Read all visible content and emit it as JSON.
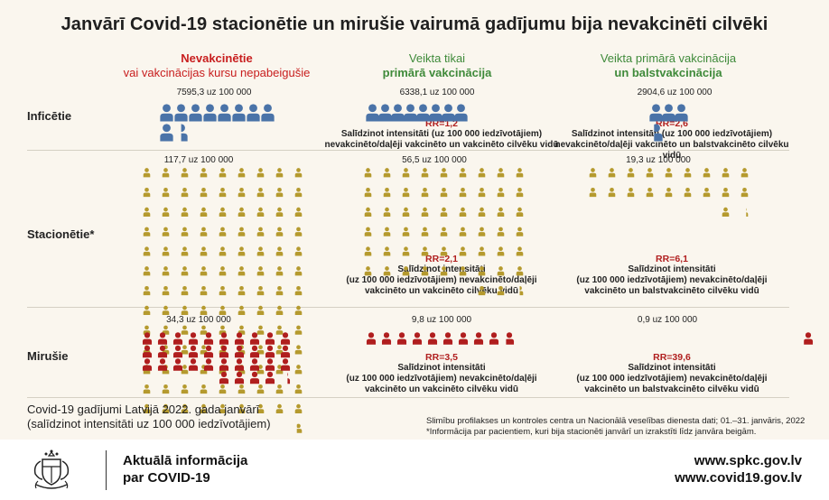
{
  "title": "Janvārī Covid-19 stacionētie un mirušie vairumā gadījumu bija nevakcinēti cilvēki",
  "columns": [
    {
      "line1": "Nevakcinētie",
      "line2": "vai vakcinācijas kursu nepabeigušie",
      "color1": "#c81e1e",
      "color2": "#c81e1e"
    },
    {
      "line1": "Veikta tikai",
      "line2": "primārā vakcinācija",
      "color1": "#3f8a3a",
      "color2": "#3f8a3a"
    },
    {
      "line1": "Veikta primārā vakcinācija",
      "line2": "un balstvakcinācija",
      "color1": "#3f8a3a",
      "color2": "#3f8a3a"
    }
  ],
  "rows": [
    {
      "label": "Inficētie"
    },
    {
      "label": "Stacionētie*"
    },
    {
      "label": "Mirušie"
    }
  ],
  "chart_data": {
    "type": "pictogram",
    "unit": "uz 100 000",
    "categories": [
      "Nevakcinētie vai vakcinācijas kursu nepabeigušie",
      "Veikta tikai primārā vakcinācija",
      "Veikta primārā vakcinācija un balstvakcinācija"
    ],
    "series": [
      {
        "name": "Inficētie",
        "color": "#4a73a8",
        "values": [
          7595.3,
          6338.1,
          2904.6
        ],
        "labels": [
          "7595,3 uz 100 000",
          "6338,1 uz 100 000",
          "2904,6 uz 100 000"
        ],
        "icon_scale": 800
      },
      {
        "name": "Stacionētie*",
        "color": "#b59a2e",
        "values": [
          117.7,
          56.5,
          19.3
        ],
        "labels": [
          "117,7 uz 100 000",
          "56,5 uz 100 000",
          "19,3 uz 100 000"
        ],
        "icon_scale": 1
      },
      {
        "name": "Mirušie",
        "color": "#b01e1e",
        "values": [
          34.3,
          9.8,
          0.9
        ],
        "labels": [
          "34,3 uz 100 000",
          "9,8 uz 100 000",
          "0,9 uz 100 000"
        ],
        "icon_scale": 1
      }
    ],
    "rr": {
      "Inficētie": [
        null,
        {
          "value": "RR=1,2",
          "lines": [
            "Salīdzinot intensitāti (uz 100 000 iedzīvotājiem)",
            "nevakcinēto/daļēji vakcinēto un vakcinēto cilvēku vidū"
          ]
        },
        {
          "value": "RR=2,6",
          "lines": [
            "Salīdzinot intensitāti (uz 100 000 iedzīvotājiem)",
            "nevakcinēto/daļēji vakcinēto un balstvakcinēto cilvēku vidū"
          ]
        }
      ],
      "Stacionētie*": [
        null,
        {
          "value": "RR=2,1",
          "lines": [
            "Salīdzinot intensitāti",
            "(uz 100 000 iedzīvotājiem) nevakcinēto/daļēji",
            "vakcinēto un vakcinēto cilvēku vidū"
          ]
        },
        {
          "value": "RR=6,1",
          "lines": [
            "Salīdzinot intensitāti",
            "(uz 100 000 iedzīvotājiem) nevakcinēto/daļēji",
            "vakcinēto un balstvakcinēto cilvēku vidū"
          ]
        }
      ],
      "Mirušie": [
        null,
        {
          "value": "RR=3,5",
          "lines": [
            "Salīdzinot intensitāti",
            "(uz 100 000 iedzīvotājiem) nevakcinēto/daļēji",
            "vakcinēto un vakcinēto cilvēku vidū"
          ]
        },
        {
          "value": "RR=39,6",
          "lines": [
            "Salīdzinot intensitāti",
            "(uz 100 000 iedzīvotājiem) nevakcinēto/daļēji",
            "vakcinēto un balstvakcinēto cilvēku vidū"
          ]
        }
      ]
    }
  },
  "footer": {
    "line1": "Covid-19 gadījumi Latvijā 2022. gada janvārī",
    "line2": "(salīdzinot intensitāti uz 100 000 iedzīvotājiem)",
    "source1": "Slimību profilakses un kontroles centra un Nacionālā veselības dienesta dati; 01.–31. janvāris, 2022",
    "source2": "*Informācija par pacientiem, kuri bija stacionēti janvārī un izrakstīti līdz janvāra beigām."
  },
  "bottom": {
    "info1": "Aktuālā informācija",
    "info2": "par COVID-19",
    "url1": "www.spkc.gov.lv",
    "url2": "www.covid19.gov.lv",
    "logo_icon": "coat-of-arms-icon"
  }
}
